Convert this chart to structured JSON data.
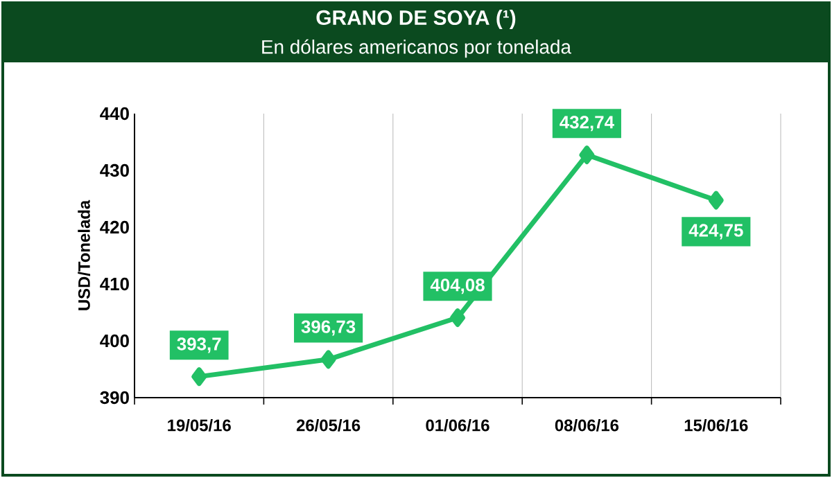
{
  "chart_data": {
    "type": "line",
    "title": "GRANO DE SOYA (¹)",
    "subtitle": "En dólares americanos por tonelada",
    "ylabel": "USD/Tonelada",
    "categories": [
      "19/05/16",
      "26/05/16",
      "01/06/16",
      "08/06/16",
      "15/06/16"
    ],
    "series": [
      {
        "color": "#22c065",
        "values": [
          393.7,
          396.73,
          404.08,
          432.74,
          424.75
        ],
        "value_labels": [
          "393,7",
          "396,73",
          "404,08",
          "432,74",
          "424,75"
        ]
      }
    ],
    "ylim": [
      390,
      440
    ],
    "yticks": [
      390,
      400,
      410,
      420,
      430,
      440
    ],
    "grid": "x",
    "marker": "diamond",
    "line_style": "solid"
  }
}
